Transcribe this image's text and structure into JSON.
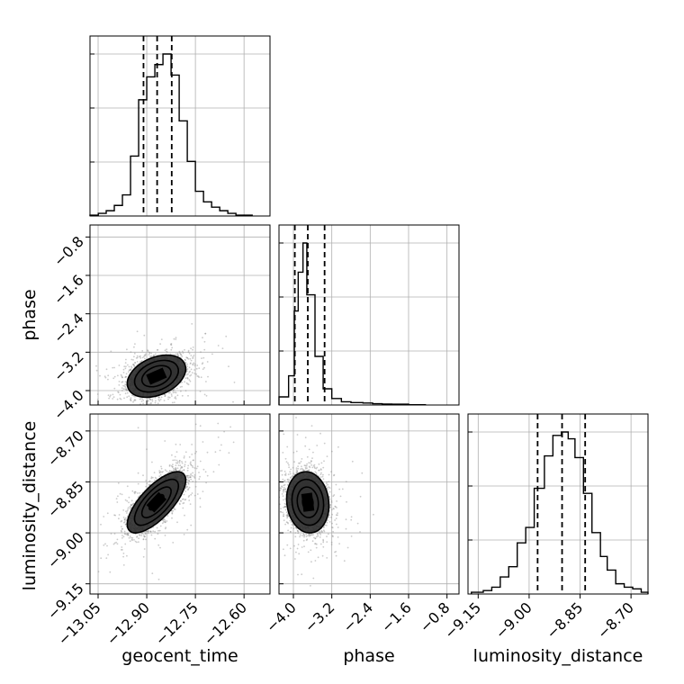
{
  "chart_data": {
    "type": "corner",
    "grid": true,
    "parameters": [
      "geocent_time",
      "phase",
      "luminosity_distance"
    ],
    "axis_labels": {
      "x": [
        "geocent_time",
        "phase",
        "luminosity_distance"
      ],
      "y": [
        "",
        "phase",
        "luminosity_distance"
      ]
    },
    "ranges": {
      "geocent_time": [
        -13.075,
        -12.52
      ],
      "phase": [
        -4.3,
        -0.55
      ],
      "luminosity_distance": [
        -9.18,
        -8.65
      ]
    },
    "ticks": {
      "geocent_time": [
        "−13.05",
        "−12.90",
        "−12.75",
        "−12.60"
      ],
      "phase": [
        "−4.0",
        "−3.2",
        "−2.4",
        "−1.6",
        "−0.8"
      ],
      "luminosity_distance": [
        "−9.15",
        "−9.00",
        "−8.85",
        "−8.70"
      ]
    },
    "tick_values": {
      "geocent_time": [
        -13.05,
        -12.9,
        -12.75,
        -12.6
      ],
      "phase": [
        -4.0,
        -3.2,
        -2.4,
        -1.6,
        -0.8
      ],
      "luminosity_distance": [
        -9.15,
        -9.0,
        -8.85,
        -8.7
      ]
    },
    "histograms": [
      {
        "parameter": "geocent_time",
        "bin_edges": [
          -13.075,
          -13.0495,
          -13.025,
          -13.0,
          -12.975,
          -12.95,
          -12.925,
          -12.9,
          -12.875,
          -12.85,
          -12.825,
          -12.8,
          -12.775,
          -12.75,
          -12.725,
          -12.7,
          -12.675,
          -12.65,
          -12.625,
          -12.6,
          -12.575
        ],
        "counts": [
          0.005,
          0.015,
          0.03,
          0.06,
          0.12,
          0.34,
          0.66,
          0.79,
          0.86,
          0.92,
          0.8,
          0.54,
          0.31,
          0.14,
          0.08,
          0.05,
          0.03,
          0.015,
          0.005,
          0.005
        ],
        "quantiles": [
          -12.91,
          -12.868,
          -12.823
        ]
      },
      {
        "parameter": "phase",
        "bin_edges": [
          -4.3,
          -4.1,
          -3.98,
          -3.9,
          -3.8,
          -3.72,
          -3.55,
          -3.38,
          -3.2,
          -3.0,
          -2.8,
          -2.55,
          -2.35,
          -2.15,
          -1.95,
          -1.6,
          -1.25
        ],
        "counts": [
          0.05,
          0.18,
          0.58,
          0.82,
          1.0,
          0.68,
          0.3,
          0.1,
          0.04,
          0.02,
          0.015,
          0.012,
          0.008,
          0.006,
          0.005,
          0.002
        ],
        "quantiles": [
          -3.97,
          -3.7,
          -3.35
        ]
      },
      {
        "parameter": "luminosity_distance",
        "bin_edges": [
          -9.17,
          -9.135,
          -9.11,
          -9.085,
          -9.06,
          -9.035,
          -9.01,
          -8.985,
          -8.955,
          -8.93,
          -8.905,
          -8.885,
          -8.865,
          -8.84,
          -8.815,
          -8.79,
          -8.77,
          -8.745,
          -8.72,
          -8.695,
          -8.67,
          -8.65
        ],
        "counts": [
          0.01,
          0.02,
          0.04,
          0.1,
          0.16,
          0.3,
          0.39,
          0.62,
          0.81,
          0.93,
          0.95,
          0.91,
          0.8,
          0.59,
          0.36,
          0.22,
          0.14,
          0.06,
          0.04,
          0.03,
          0.01
        ],
        "quantiles": [
          -8.975,
          -8.903,
          -8.835
        ]
      }
    ],
    "pairs": [
      {
        "x_param": "geocent_time",
        "y_param": "phase",
        "center": [
          -12.87,
          -3.7
        ],
        "spread": [
          0.045,
          0.22
        ],
        "correlation": 0.35,
        "contour_levels": [
          0.5,
          1.0,
          1.5,
          2.0
        ]
      },
      {
        "x_param": "geocent_time",
        "y_param": "luminosity_distance",
        "center": [
          -12.87,
          -8.91
        ],
        "spread": [
          0.045,
          0.045
        ],
        "correlation": 0.72,
        "contour_levels": [
          0.5,
          1.0,
          1.5,
          2.0
        ]
      },
      {
        "x_param": "phase",
        "y_param": "luminosity_distance",
        "center": [
          -3.7,
          -8.91
        ],
        "spread": [
          0.22,
          0.045
        ],
        "correlation": -0.1,
        "contour_levels": [
          0.5,
          1.0,
          1.5,
          2.0
        ]
      }
    ],
    "colors": {
      "line": "#000000",
      "grid": "#b0b0b0",
      "scatter": "#8c8c8c",
      "density_dark": "#000000",
      "density_light": "#ffffff"
    }
  }
}
